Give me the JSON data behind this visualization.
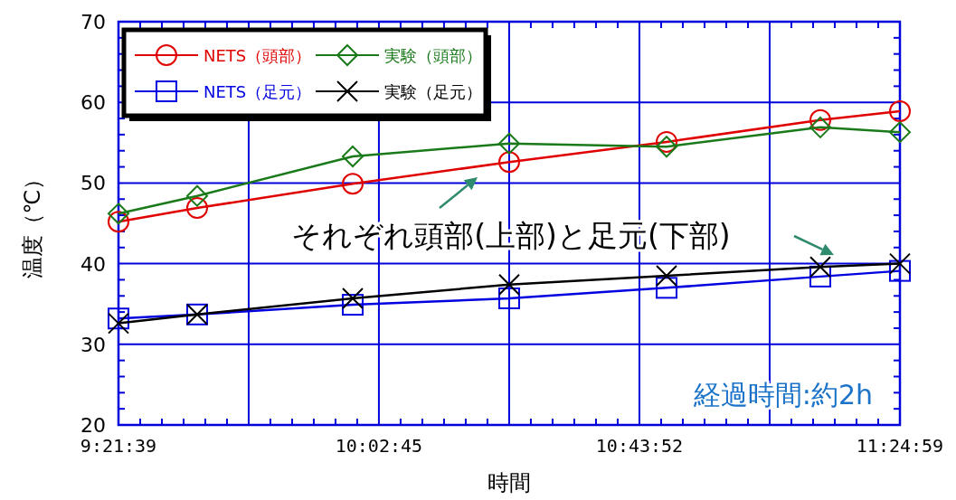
{
  "chart_data": {
    "type": "line",
    "xlabel": "時間",
    "ylabel": "温度（℃）",
    "xlim": [
      9.360833,
      11.416389
    ],
    "ylim": [
      20,
      70
    ],
    "xticks": [
      {
        "value": 9.360833,
        "label": "9:21:39"
      },
      {
        "value": 9.703333,
        "label": null
      },
      {
        "value": 10.045833,
        "label": "10:02:45"
      },
      {
        "value": 10.388472,
        "label": null
      },
      {
        "value": 10.731111,
        "label": "10:43:52"
      },
      {
        "value": 11.07375,
        "label": null
      },
      {
        "value": 11.416389,
        "label": "11:24:59"
      }
    ],
    "yticks": [
      20,
      30,
      40,
      50,
      60,
      70
    ],
    "grid": true,
    "legend": "top left",
    "x": [
      9.360833,
      9.5678,
      9.977,
      10.3886,
      10.8026,
      11.207,
      11.416389
    ],
    "series": [
      {
        "name": "NETS（頭部）",
        "color": "#e00000",
        "marker": "circle",
        "values": [
          45.2,
          46.9,
          49.9,
          52.6,
          55.1,
          57.8,
          58.9
        ]
      },
      {
        "name": "実験（頭部）",
        "color": "#1a7a1a",
        "marker": "diamond",
        "values": [
          46.2,
          48.4,
          53.3,
          54.9,
          54.5,
          56.9,
          56.3
        ]
      },
      {
        "name": "NETS（足元）",
        "color": "#0000e0",
        "marker": "square",
        "values": [
          33.2,
          33.7,
          34.9,
          35.7,
          37.0,
          38.4,
          39.1
        ]
      },
      {
        "name": "実験（足元）",
        "color": "#000000",
        "marker": "cross",
        "values": [
          32.6,
          33.7,
          35.7,
          37.4,
          38.5,
          39.6,
          40.0
        ]
      }
    ],
    "annotations": [
      "それぞれ頭部(上部)と足元(下部)",
      "経過時間:約2h"
    ]
  }
}
